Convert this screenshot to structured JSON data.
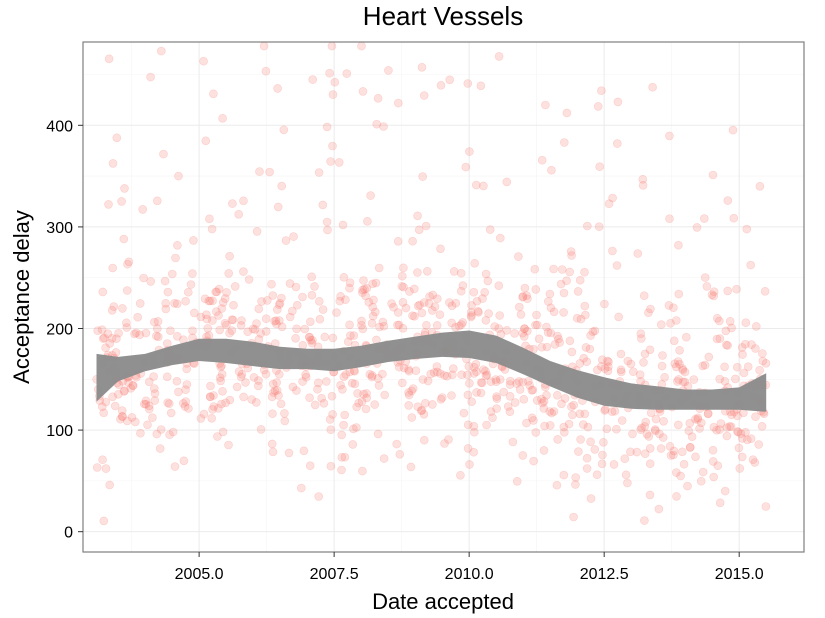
{
  "chart_data": {
    "type": "scatter",
    "title": "Heart Vessels",
    "xlabel": "Date accepted",
    "ylabel": "Acceptance delay",
    "xlim": [
      2002.85,
      2016.2
    ],
    "ylim": [
      -20,
      482
    ],
    "x_ticks": [
      2005.0,
      2007.5,
      2010.0,
      2012.5,
      2015.0
    ],
    "x_tick_labels": [
      "2005.0",
      "2007.5",
      "2010.0",
      "2012.5",
      "2015.0"
    ],
    "y_ticks": [
      0,
      100,
      200,
      300,
      400
    ],
    "y_tick_labels": [
      "0",
      "100",
      "200",
      "300",
      "400"
    ],
    "grid": true,
    "point_color": "#f8766d",
    "point_opacity": 0.22,
    "band_color": "#8c8c8c",
    "n_points": 1100,
    "x_range": [
      2003.1,
      2015.5
    ],
    "smooth": {
      "x": [
        2003.1,
        2003.5,
        2004.0,
        2004.5,
        2005.0,
        2005.5,
        2006.0,
        2006.5,
        2007.0,
        2007.5,
        2008.0,
        2008.5,
        2009.0,
        2009.5,
        2010.0,
        2010.5,
        2011.0,
        2011.5,
        2012.0,
        2012.5,
        2013.0,
        2013.5,
        2014.0,
        2014.5,
        2015.0,
        2015.5
      ],
      "lower": [
        128,
        148,
        158,
        164,
        168,
        166,
        163,
        160,
        160,
        158,
        162,
        167,
        170,
        172,
        171,
        166,
        155,
        143,
        132,
        124,
        121,
        120,
        120,
        120,
        120,
        118
      ],
      "upper": [
        175,
        172,
        175,
        183,
        190,
        190,
        187,
        182,
        180,
        180,
        183,
        188,
        192,
        196,
        198,
        193,
        181,
        168,
        159,
        152,
        146,
        143,
        140,
        140,
        142,
        156
      ]
    }
  }
}
